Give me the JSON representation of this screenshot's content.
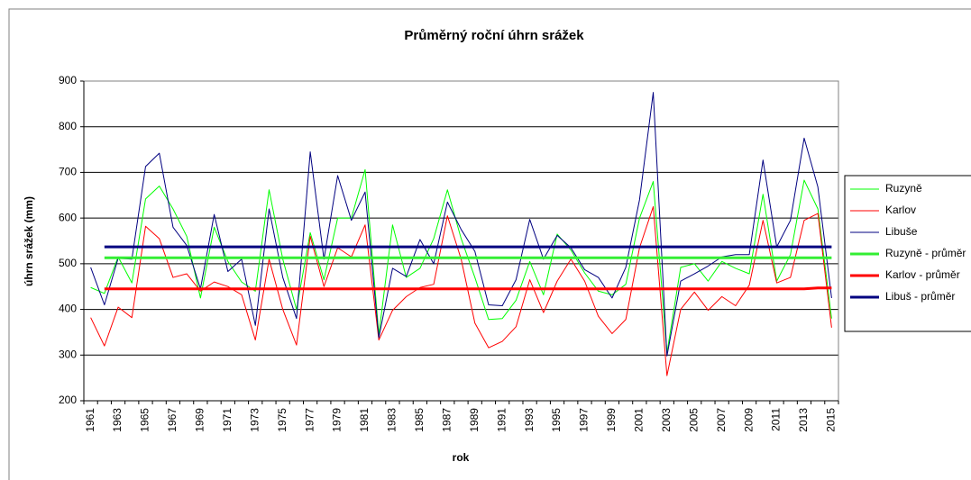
{
  "chart_data": {
    "type": "line",
    "title": "Průměrný roční úhrn srážek",
    "x_label": "rok",
    "y_label": "úhrn srážek (mm)",
    "categories": [
      "1961",
      null,
      "1963",
      null,
      "1965",
      null,
      "1967",
      null,
      "1969",
      null,
      "1971",
      null,
      "1973",
      null,
      "1975",
      null,
      "1977",
      null,
      "1979",
      null,
      "1981",
      null,
      "1983",
      null,
      "1985",
      null,
      "1987",
      null,
      "1989",
      null,
      "1991",
      null,
      "1993",
      null,
      "1995",
      null,
      "1997",
      null,
      "1999",
      null,
      "2001",
      null,
      "2003",
      null,
      "2005",
      null,
      "2007",
      null,
      "2009",
      null,
      "2011",
      null,
      "2013",
      null,
      "2015"
    ],
    "ylim": [
      200,
      900
    ],
    "yticks": [
      200,
      300,
      400,
      500,
      600,
      700,
      800,
      900
    ],
    "grid": true,
    "legend": "right",
    "series": [
      {
        "name": "Ruzyně",
        "color": "#00ff00",
        "values": [
          448,
          435,
          515,
          458,
          642,
          670,
          620,
          560,
          425,
          580,
          505,
          460,
          440,
          662,
          510,
          400,
          568,
          465,
          600,
          600,
          706,
          345,
          585,
          470,
          490,
          555,
          662,
          555,
          470,
          378,
          380,
          420,
          505,
          432,
          565,
          530,
          480,
          440,
          432,
          455,
          600,
          680,
          305,
          492,
          500,
          462,
          505,
          490,
          478,
          652,
          462,
          520,
          683,
          620,
          380
        ]
      },
      {
        "name": "Karlov",
        "color": "#ff0000",
        "values": [
          382,
          320,
          405,
          382,
          582,
          555,
          470,
          478,
          440,
          460,
          450,
          432,
          333,
          510,
          400,
          322,
          560,
          450,
          535,
          515,
          585,
          333,
          398,
          428,
          448,
          455,
          605,
          510,
          370,
          316,
          330,
          362,
          465,
          393,
          462,
          510,
          462,
          385,
          347,
          378,
          535,
          625,
          255,
          400,
          438,
          398,
          428,
          408,
          453,
          595,
          458,
          470,
          595,
          610,
          360
        ]
      },
      {
        "name": "Libuše",
        "color": "#000080",
        "values": [
          492,
          410,
          512,
          510,
          713,
          742,
          580,
          540,
          445,
          608,
          483,
          510,
          365,
          620,
          470,
          380,
          745,
          510,
          693,
          595,
          657,
          338,
          490,
          472,
          553,
          500,
          635,
          575,
          527,
          410,
          408,
          465,
          597,
          510,
          562,
          535,
          487,
          470,
          425,
          492,
          640,
          875,
          298,
          462,
          478,
          495,
          515,
          520,
          520,
          727,
          537,
          595,
          775,
          668,
          425
        ]
      },
      {
        "name": "Ruzyně - průměr",
        "color": "#33ee33",
        "width": 3,
        "values": [
          null,
          513,
          513,
          513,
          513,
          513,
          513,
          513,
          513,
          513,
          513,
          513,
          513,
          513,
          513,
          513,
          513,
          513,
          513,
          513,
          513,
          513,
          513,
          513,
          513,
          513,
          513,
          513,
          513,
          513,
          513,
          513,
          513,
          513,
          513,
          513,
          513,
          513,
          513,
          513,
          513,
          513,
          513,
          513,
          513,
          513,
          513,
          513,
          513,
          513,
          513,
          513,
          513,
          513,
          513
        ]
      },
      {
        "name": "Karlov - průměr",
        "color": "#ff0000",
        "width": 3,
        "values": [
          null,
          445,
          445,
          445,
          445,
          445,
          445,
          445,
          445,
          445,
          445,
          445,
          445,
          445,
          445,
          445,
          445,
          445,
          445,
          445,
          445,
          445,
          445,
          445,
          445,
          445,
          445,
          445,
          445,
          445,
          445,
          445,
          445,
          445,
          445,
          445,
          445,
          445,
          445,
          445,
          445,
          445,
          445,
          445,
          445,
          445,
          445,
          445,
          445,
          445,
          445,
          445,
          445,
          447,
          447
        ]
      },
      {
        "name": "Libuš - průměr",
        "color": "#000080",
        "width": 3,
        "values": [
          null,
          537,
          537,
          537,
          537,
          537,
          537,
          537,
          537,
          537,
          537,
          537,
          537,
          537,
          537,
          537,
          537,
          537,
          537,
          537,
          537,
          537,
          537,
          537,
          537,
          537,
          537,
          537,
          537,
          537,
          537,
          537,
          537,
          537,
          537,
          537,
          537,
          537,
          537,
          537,
          537,
          537,
          537,
          537,
          537,
          537,
          537,
          537,
          537,
          537,
          537,
          537,
          537,
          537,
          537
        ]
      }
    ]
  }
}
